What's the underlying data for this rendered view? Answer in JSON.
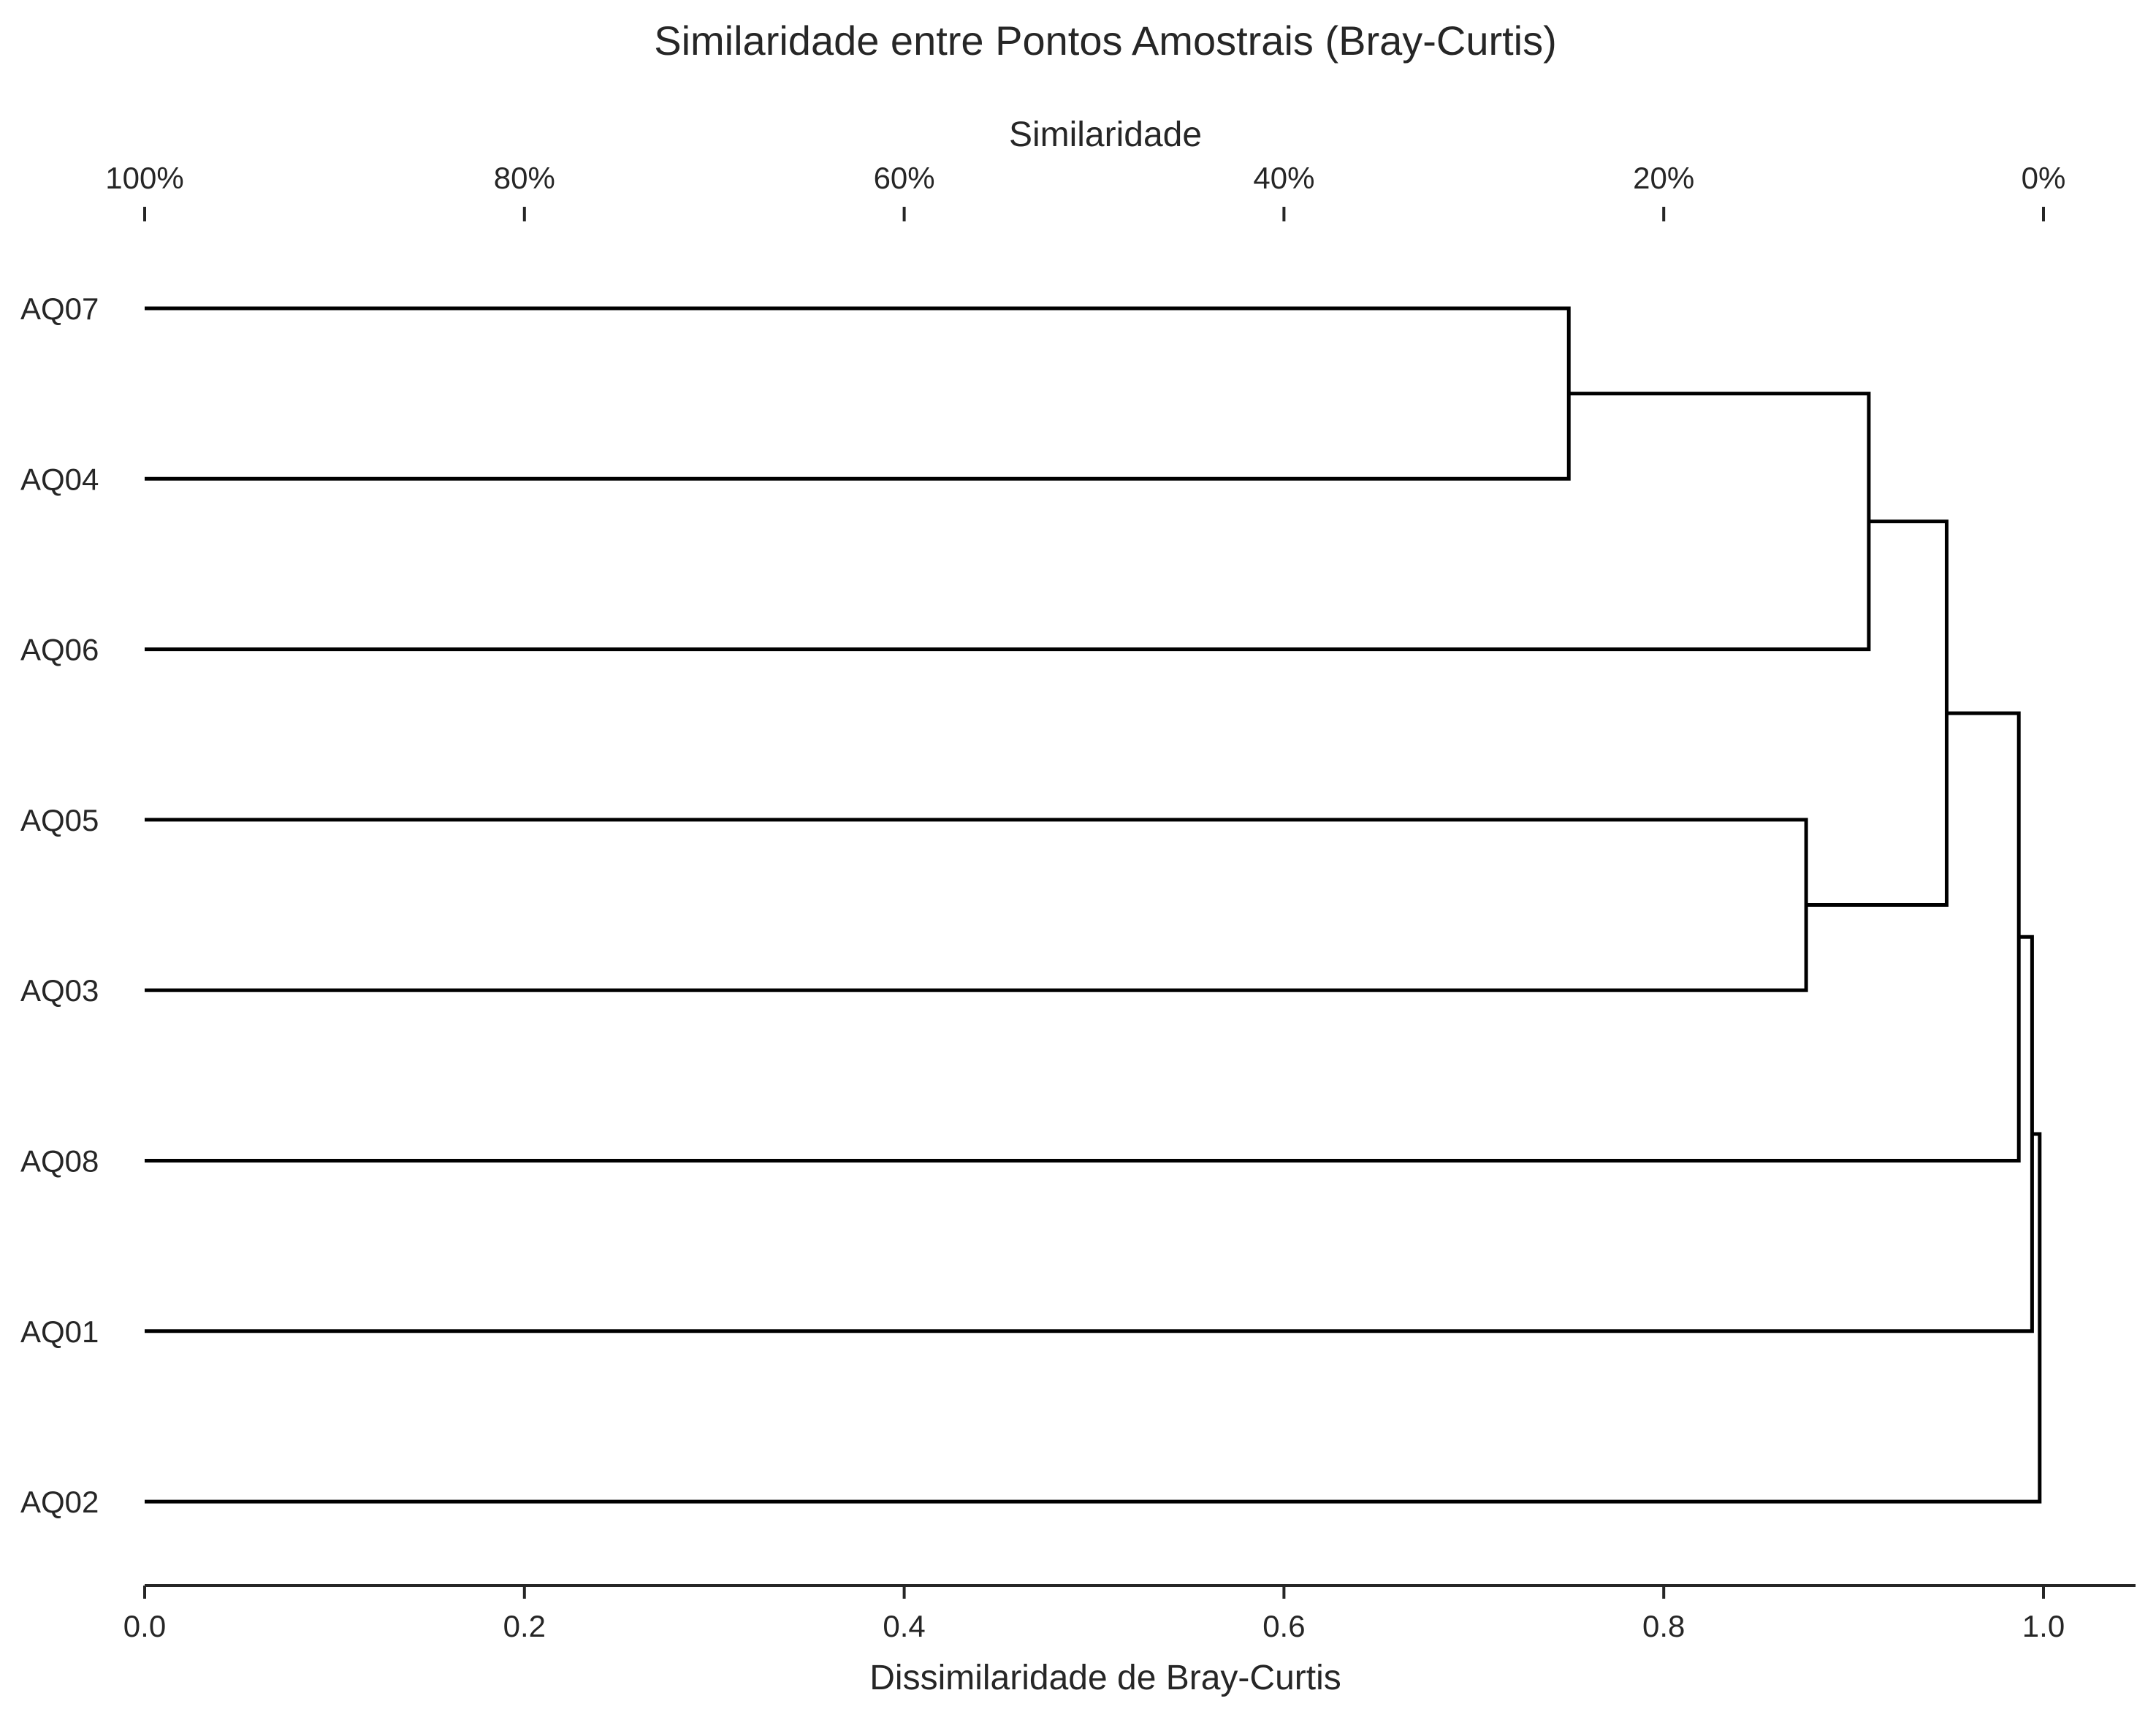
{
  "chart_data": {
    "type": "dendrogram",
    "orientation": "horizontal",
    "title": "Similaridade entre Pontos Amostrais (Bray-Curtis)",
    "xlabel": "Dissimilaridade de Bray-Curtis",
    "top_xlabel": "Similaridade",
    "xlim": [
      0,
      1.05
    ],
    "bottom_ticks": [
      {
        "value": 0.0,
        "label": "0.0"
      },
      {
        "value": 0.2,
        "label": "0.2"
      },
      {
        "value": 0.4,
        "label": "0.4"
      },
      {
        "value": 0.6,
        "label": "0.6"
      },
      {
        "value": 0.8,
        "label": "0.8"
      },
      {
        "value": 1.0,
        "label": "1.0"
      }
    ],
    "top_ticks": [
      {
        "value": 0.0,
        "label": "100%"
      },
      {
        "value": 0.2,
        "label": "80%"
      },
      {
        "value": 0.4,
        "label": "60%"
      },
      {
        "value": 0.6,
        "label": "40%"
      },
      {
        "value": 0.8,
        "label": "20%"
      },
      {
        "value": 1.0,
        "label": "0%"
      }
    ],
    "leaves": [
      "AQ07",
      "AQ04",
      "AQ06",
      "AQ05",
      "AQ03",
      "AQ08",
      "AQ01",
      "AQ02"
    ],
    "merges": [
      {
        "left": "AQ07",
        "right": "AQ04",
        "height": 0.75
      },
      {
        "left": "AQ07+AQ04",
        "right": "AQ06",
        "height": 0.908
      },
      {
        "left": "AQ05",
        "right": "AQ03",
        "height": 0.875
      },
      {
        "left": "AQ07+AQ04+AQ06",
        "right": "AQ05+AQ03",
        "height": 0.949
      },
      {
        "left": "AQ07+AQ04+AQ06+AQ05+AQ03",
        "right": "AQ08",
        "height": 0.987
      },
      {
        "left": "AQ07+AQ04+AQ06+AQ05+AQ03+AQ08",
        "right": "AQ01",
        "height": 0.994
      },
      {
        "left": "AQ07+AQ04+AQ06+AQ05+AQ03+AQ08+AQ01",
        "right": "AQ02",
        "height": 0.998
      }
    ],
    "grid": false,
    "legend": "none"
  }
}
